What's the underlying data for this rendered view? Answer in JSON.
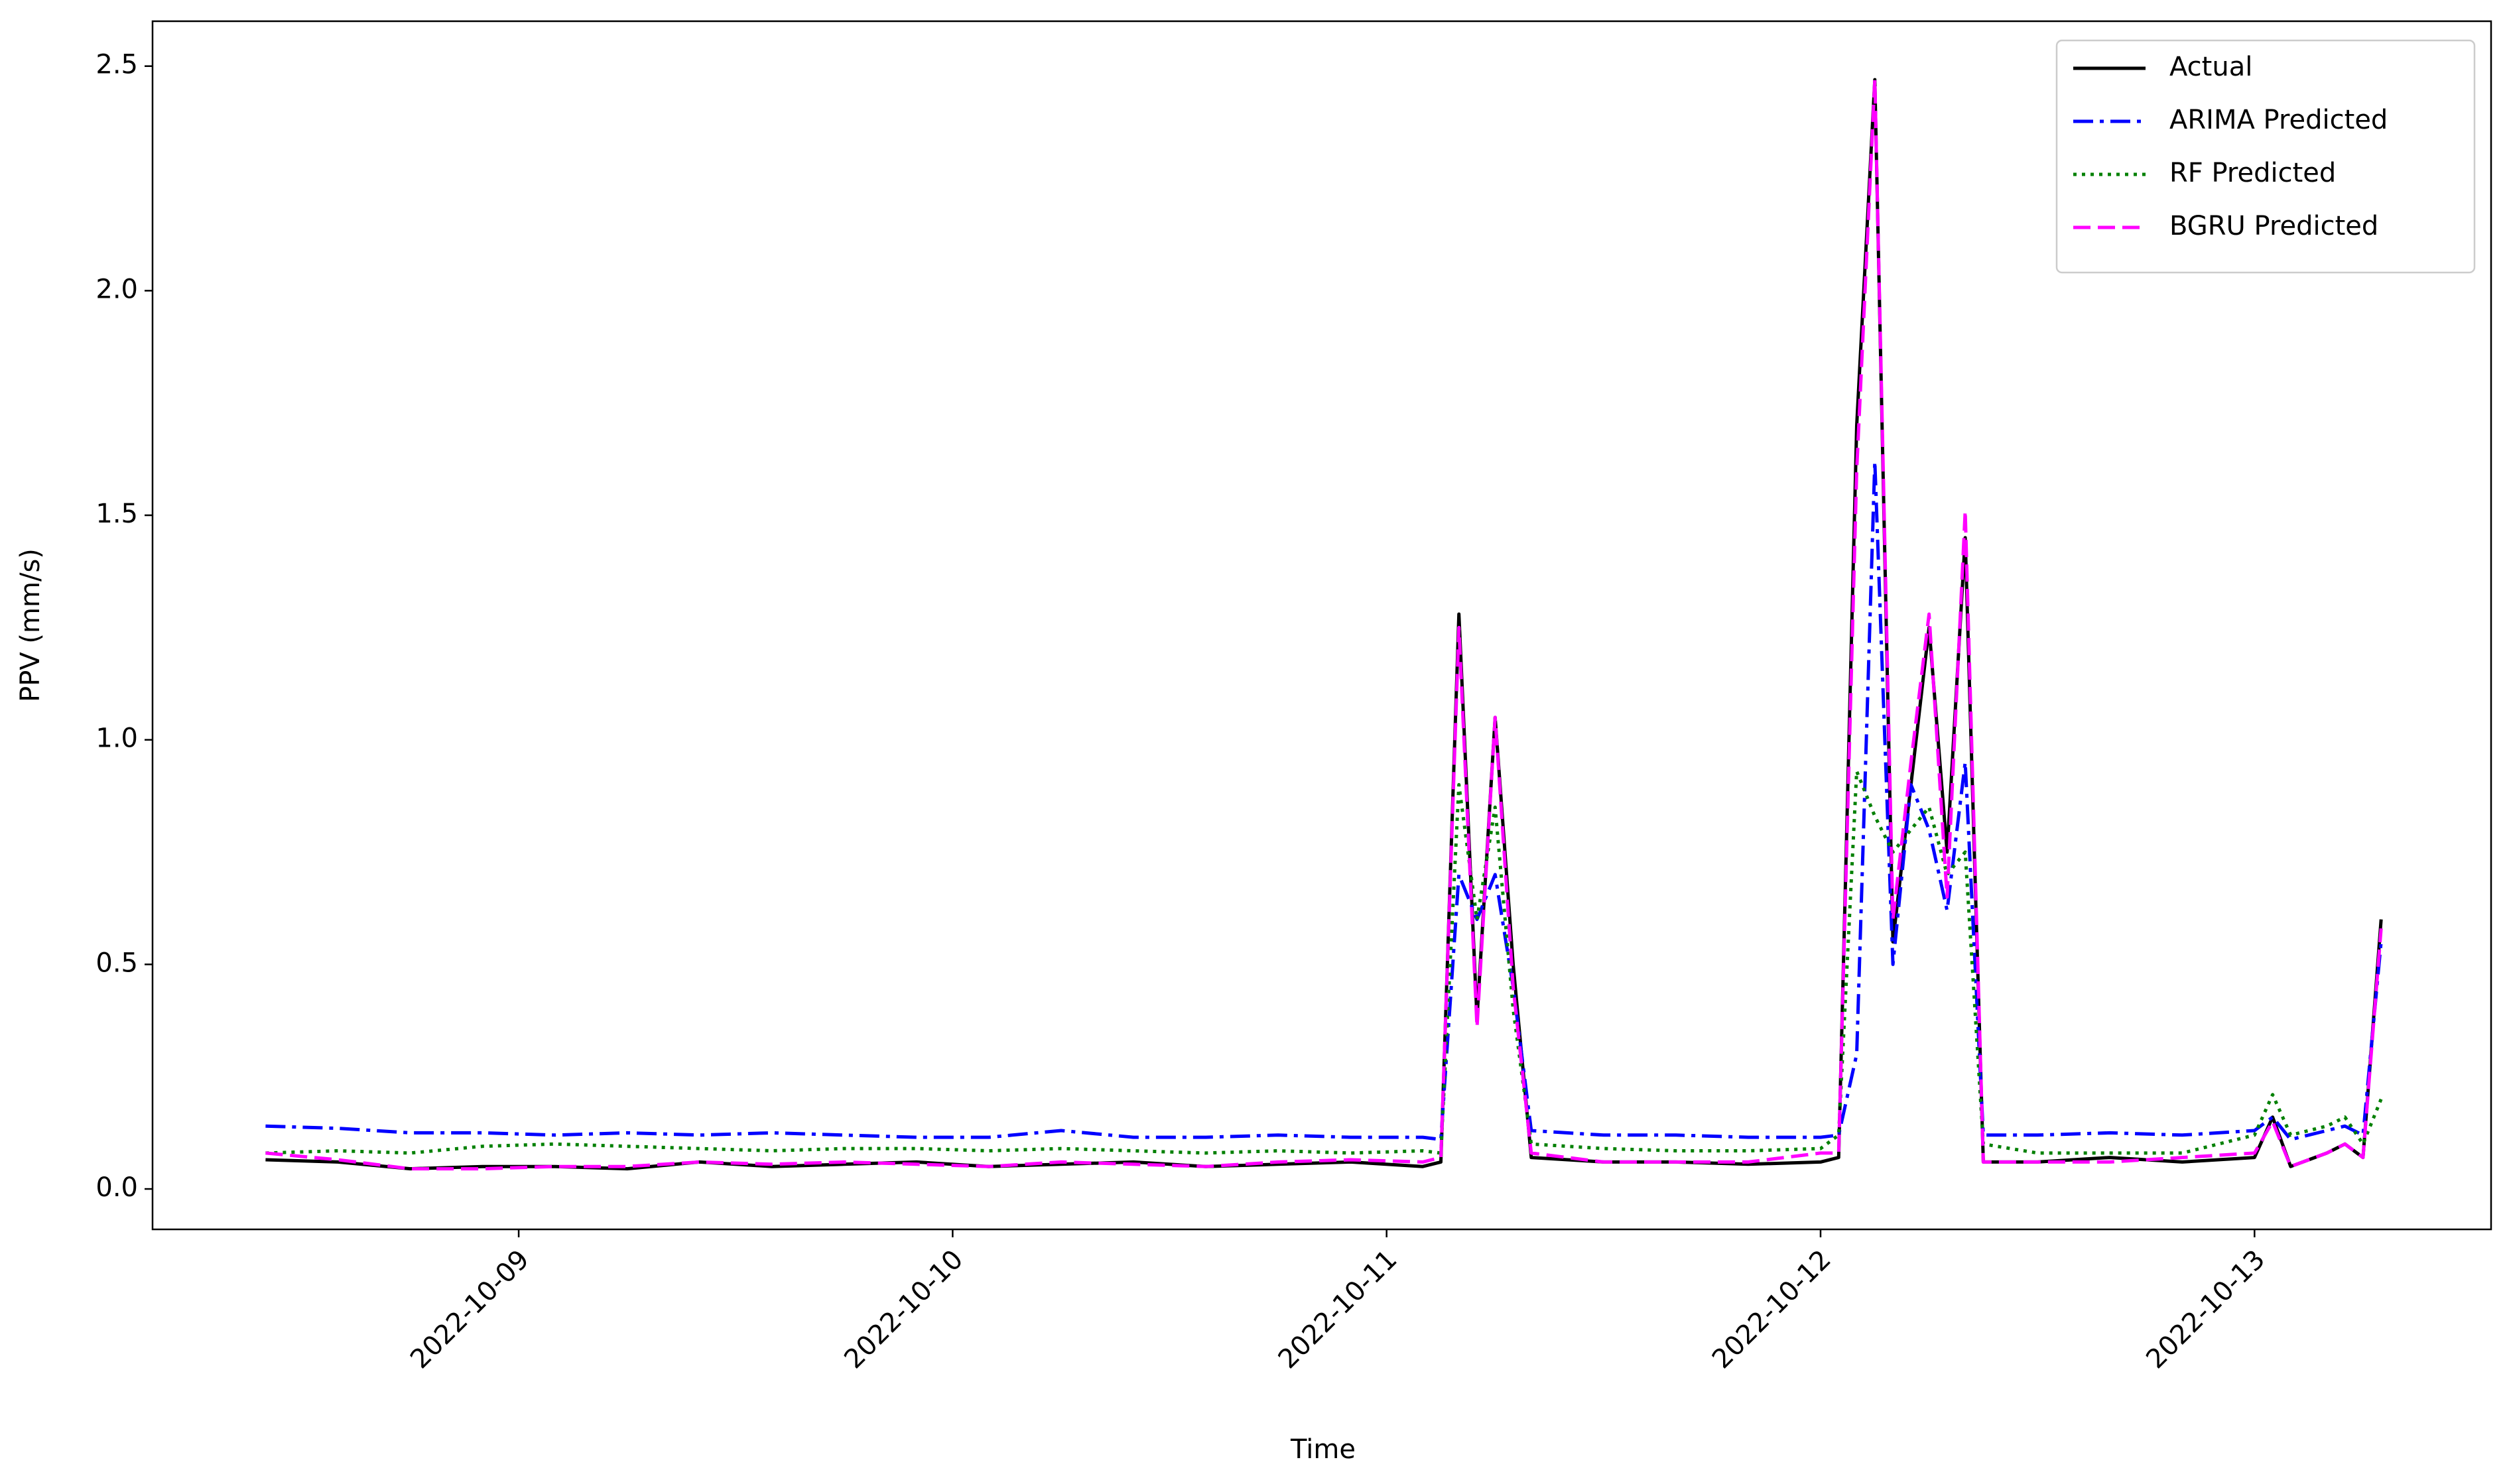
{
  "chart_data": {
    "type": "line",
    "x_label": "Time",
    "y_label": "PPV (mm/s)",
    "x": [
      "2022-10-08 10:00",
      "2022-10-08 14:00",
      "2022-10-08 18:00",
      "2022-10-08 22:00",
      "2022-10-09 02:00",
      "2022-10-09 06:00",
      "2022-10-09 10:00",
      "2022-10-09 14:00",
      "2022-10-09 18:00",
      "2022-10-09 22:00",
      "2022-10-10 02:00",
      "2022-10-10 06:00",
      "2022-10-10 10:00",
      "2022-10-10 14:00",
      "2022-10-10 18:00",
      "2022-10-10 22:00",
      "2022-10-11 02:00",
      "2022-10-11 03:00",
      "2022-10-11 04:00",
      "2022-10-11 05:00",
      "2022-10-11 06:00",
      "2022-10-11 07:00",
      "2022-10-11 08:00",
      "2022-10-11 12:00",
      "2022-10-11 16:00",
      "2022-10-11 20:00",
      "2022-10-12 00:00",
      "2022-10-12 01:00",
      "2022-10-12 02:00",
      "2022-10-12 03:00",
      "2022-10-12 04:00",
      "2022-10-12 05:00",
      "2022-10-12 06:00",
      "2022-10-12 07:00",
      "2022-10-12 08:00",
      "2022-10-12 09:00",
      "2022-10-12 12:00",
      "2022-10-12 16:00",
      "2022-10-12 20:00",
      "2022-10-13 00:00",
      "2022-10-13 01:00",
      "2022-10-13 02:00",
      "2022-10-13 04:00",
      "2022-10-13 05:00",
      "2022-10-13 06:00",
      "2022-10-13 07:00"
    ],
    "series": [
      {
        "name": "Actual",
        "color": "#000000",
        "style": "solid",
        "values": [
          0.065,
          0.06,
          0.045,
          0.05,
          0.05,
          0.045,
          0.06,
          0.05,
          0.055,
          0.06,
          0.05,
          0.055,
          0.06,
          0.05,
          0.055,
          0.06,
          0.05,
          0.06,
          1.28,
          0.38,
          1.05,
          0.5,
          0.07,
          0.06,
          0.06,
          0.055,
          0.06,
          0.07,
          1.7,
          2.47,
          0.55,
          0.9,
          1.25,
          0.75,
          1.45,
          0.06,
          0.06,
          0.07,
          0.06,
          0.07,
          0.16,
          0.05,
          0.08,
          0.1,
          0.07,
          0.6
        ]
      },
      {
        "name": "ARIMA Predicted",
        "color": "#0000ff",
        "style": "dashdot",
        "values": [
          0.14,
          0.135,
          0.125,
          0.125,
          0.12,
          0.125,
          0.12,
          0.125,
          0.12,
          0.115,
          0.115,
          0.13,
          0.115,
          0.115,
          0.12,
          0.115,
          0.115,
          0.11,
          0.7,
          0.6,
          0.7,
          0.45,
          0.13,
          0.12,
          0.12,
          0.115,
          0.115,
          0.12,
          0.3,
          1.62,
          0.5,
          0.9,
          0.8,
          0.62,
          0.95,
          0.12,
          0.12,
          0.125,
          0.12,
          0.13,
          0.16,
          0.11,
          0.13,
          0.14,
          0.12,
          0.55
        ]
      },
      {
        "name": "RF Predicted",
        "color": "#008000",
        "style": "dotted",
        "values": [
          0.08,
          0.085,
          0.08,
          0.095,
          0.1,
          0.095,
          0.09,
          0.085,
          0.09,
          0.09,
          0.085,
          0.09,
          0.085,
          0.08,
          0.085,
          0.08,
          0.085,
          0.08,
          0.9,
          0.6,
          0.85,
          0.4,
          0.1,
          0.09,
          0.085,
          0.085,
          0.09,
          0.12,
          0.93,
          0.83,
          0.75,
          0.8,
          0.85,
          0.7,
          0.75,
          0.1,
          0.08,
          0.08,
          0.08,
          0.12,
          0.21,
          0.12,
          0.14,
          0.16,
          0.1,
          0.2
        ]
      },
      {
        "name": "BGRU Predicted",
        "color": "#ff00ff",
        "style": "dashed",
        "values": [
          0.08,
          0.065,
          0.045,
          0.045,
          0.05,
          0.05,
          0.06,
          0.055,
          0.06,
          0.055,
          0.05,
          0.06,
          0.055,
          0.05,
          0.06,
          0.065,
          0.06,
          0.07,
          1.25,
          0.36,
          1.05,
          0.45,
          0.08,
          0.06,
          0.06,
          0.06,
          0.08,
          0.08,
          1.6,
          2.47,
          0.6,
          0.95,
          1.28,
          0.65,
          1.51,
          0.06,
          0.06,
          0.06,
          0.07,
          0.08,
          0.15,
          0.05,
          0.08,
          0.1,
          0.07,
          0.58
        ]
      }
    ],
    "xlim": [
      "2022-10-08 03:45",
      "2022-10-13 13:05"
    ],
    "xticks": [
      "2022-10-09",
      "2022-10-10",
      "2022-10-11",
      "2022-10-12",
      "2022-10-13"
    ],
    "ylim": [
      -0.09,
      2.6
    ],
    "yticks": [
      {
        "value": 0,
        "label": "0.0"
      },
      {
        "value": 0.5,
        "label": "0.5"
      },
      {
        "value": 1,
        "label": "1.0"
      },
      {
        "value": 1.5,
        "label": "1.5"
      },
      {
        "value": 2,
        "label": "2.0"
      },
      {
        "value": 2.5,
        "label": "2.5"
      }
    ],
    "legend": "upper right",
    "grid": false
  }
}
